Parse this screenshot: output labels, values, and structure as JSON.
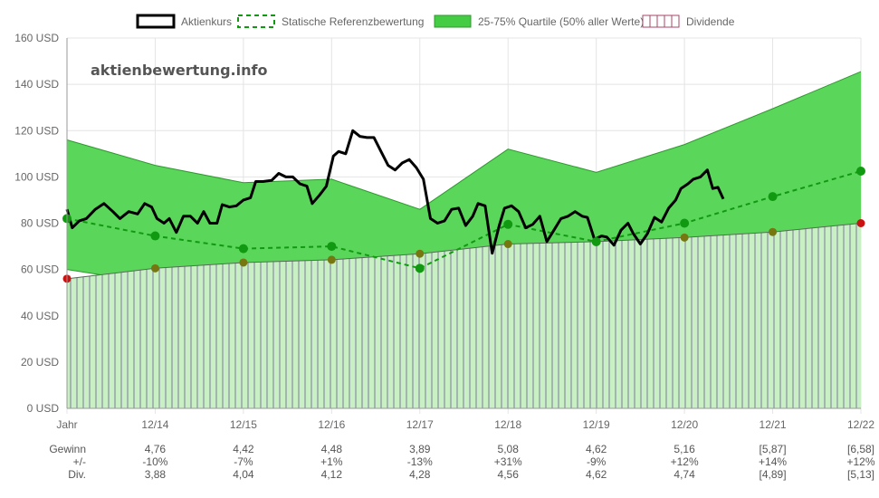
{
  "watermark": "aktienbewertung.info",
  "chart_data": {
    "type": "line",
    "legend": [
      {
        "label": "Aktienkurs",
        "color": "#000000",
        "style": "solid"
      },
      {
        "label": "Statische Referenzbewertung",
        "color": "#119911",
        "style": "dashed"
      },
      {
        "label": "25-75% Quartile (50% aller Werte)",
        "color": "#44cc44",
        "style": "fill"
      },
      {
        "label": "Dividende",
        "color": "#aa4466",
        "style": "hatch"
      }
    ],
    "legend_position": "top-center",
    "grid": true,
    "ylim": [
      0,
      160
    ],
    "y_ticks": [
      "0 USD",
      "20 USD",
      "40 USD",
      "60 USD",
      "80 USD",
      "100 USD",
      "120 USD",
      "140 USD",
      "160 USD"
    ],
    "x_labels": [
      "Jahr",
      "12/14",
      "12/15",
      "12/16",
      "12/17",
      "12/18",
      "12/19",
      "12/20",
      "12/21",
      "12/22"
    ],
    "quartile_upper": [
      [
        0,
        116
      ],
      [
        1,
        105
      ],
      [
        2,
        97.5
      ],
      [
        3,
        99
      ],
      [
        4,
        86
      ],
      [
        5,
        112
      ],
      [
        6,
        102
      ],
      [
        7,
        114
      ],
      [
        8,
        129.5
      ],
      [
        9,
        145.5
      ]
    ],
    "quartile_lower": [
      [
        0,
        60
      ],
      [
        1,
        54
      ],
      [
        2,
        50
      ],
      [
        3,
        50.5
      ],
      [
        4,
        44
      ],
      [
        5,
        58
      ],
      [
        6,
        52
      ],
      [
        7,
        58
      ],
      [
        8,
        66
      ],
      [
        9,
        74
      ]
    ],
    "dividend_line": [
      [
        0,
        56
      ],
      [
        1,
        60.5
      ],
      [
        2,
        63
      ],
      [
        3,
        64.2
      ],
      [
        4,
        66.8
      ],
      [
        5,
        71
      ],
      [
        6,
        72
      ],
      [
        7,
        73.8
      ],
      [
        8,
        76.2
      ],
      [
        9,
        80
      ]
    ],
    "dividend_points": [
      {
        "x": 0,
        "y": 56,
        "color": "#cc1111"
      },
      {
        "x": 1,
        "y": 60.5,
        "color": "#777711"
      },
      {
        "x": 2,
        "y": 63,
        "color": "#777711"
      },
      {
        "x": 3,
        "y": 64.2,
        "color": "#777711"
      },
      {
        "x": 4,
        "y": 66.8,
        "color": "#777711"
      },
      {
        "x": 5,
        "y": 71,
        "color": "#777711"
      },
      {
        "x": 6,
        "y": 72,
        "color": "#777711"
      },
      {
        "x": 7,
        "y": 73.8,
        "color": "#777711"
      },
      {
        "x": 8,
        "y": 76.2,
        "color": "#777711"
      },
      {
        "x": 9,
        "y": 80,
        "color": "#cc1111"
      }
    ],
    "reference_line": [
      [
        0,
        82
      ],
      [
        1,
        74.5
      ],
      [
        2,
        69
      ],
      [
        3,
        70
      ],
      [
        4,
        60.5
      ],
      [
        5,
        79.5
      ],
      [
        6,
        72
      ],
      [
        7,
        80
      ],
      [
        8,
        91.5
      ],
      [
        9,
        102.5
      ]
    ],
    "price": [
      [
        0,
        86
      ],
      [
        0.06,
        78
      ],
      [
        0.14,
        81
      ],
      [
        0.22,
        82
      ],
      [
        0.32,
        86
      ],
      [
        0.42,
        88.5
      ],
      [
        0.52,
        85
      ],
      [
        0.6,
        82
      ],
      [
        0.7,
        85
      ],
      [
        0.8,
        84
      ],
      [
        0.88,
        88.5
      ],
      [
        0.96,
        87
      ],
      [
        1.02,
        82
      ],
      [
        1.1,
        80
      ],
      [
        1.16,
        82
      ],
      [
        1.24,
        76
      ],
      [
        1.32,
        83
      ],
      [
        1.4,
        83
      ],
      [
        1.48,
        80
      ],
      [
        1.55,
        85
      ],
      [
        1.62,
        80
      ],
      [
        1.7,
        80
      ],
      [
        1.76,
        88
      ],
      [
        1.84,
        87
      ],
      [
        1.92,
        87.5
      ],
      [
        2.0,
        90
      ],
      [
        2.08,
        91
      ],
      [
        2.14,
        98
      ],
      [
        2.22,
        98
      ],
      [
        2.32,
        98.5
      ],
      [
        2.4,
        101.5
      ],
      [
        2.48,
        100
      ],
      [
        2.56,
        100
      ],
      [
        2.64,
        97
      ],
      [
        2.72,
        96
      ],
      [
        2.78,
        88.5
      ],
      [
        2.86,
        92
      ],
      [
        2.94,
        96
      ],
      [
        3.02,
        109
      ],
      [
        3.08,
        111
      ],
      [
        3.16,
        110
      ],
      [
        3.24,
        120
      ],
      [
        3.32,
        117.5
      ],
      [
        3.4,
        117
      ],
      [
        3.48,
        117
      ],
      [
        3.56,
        111
      ],
      [
        3.64,
        105
      ],
      [
        3.72,
        103
      ],
      [
        3.8,
        106
      ],
      [
        3.88,
        107.5
      ],
      [
        3.96,
        104
      ],
      [
        4.04,
        99
      ],
      [
        4.12,
        82
      ],
      [
        4.2,
        80
      ],
      [
        4.28,
        81
      ],
      [
        4.36,
        86
      ],
      [
        4.44,
        86.5
      ],
      [
        4.52,
        79
      ],
      [
        4.6,
        83
      ],
      [
        4.66,
        88.5
      ],
      [
        4.74,
        87.5
      ],
      [
        4.82,
        67
      ],
      [
        4.9,
        79
      ],
      [
        4.96,
        86.5
      ],
      [
        5.04,
        87.5
      ],
      [
        5.12,
        85
      ],
      [
        5.2,
        78
      ],
      [
        5.28,
        79.5
      ],
      [
        5.36,
        83
      ],
      [
        5.44,
        72
      ],
      [
        5.52,
        77
      ],
      [
        5.6,
        82
      ],
      [
        5.68,
        83
      ],
      [
        5.76,
        85
      ],
      [
        5.84,
        83
      ],
      [
        5.9,
        82.5
      ],
      [
        5.98,
        73
      ],
      [
        6.06,
        74.5
      ],
      [
        6.12,
        74
      ],
      [
        6.2,
        70.5
      ],
      [
        6.28,
        77
      ],
      [
        6.36,
        80
      ],
      [
        6.42,
        75.5
      ],
      [
        6.5,
        71
      ],
      [
        6.58,
        75.5
      ],
      [
        6.66,
        82.5
      ],
      [
        6.74,
        80.5
      ],
      [
        6.82,
        86.5
      ],
      [
        6.9,
        90
      ],
      [
        6.96,
        95
      ],
      [
        7.04,
        97
      ],
      [
        7.1,
        99
      ],
      [
        7.18,
        100
      ],
      [
        7.26,
        103
      ],
      [
        7.32,
        95
      ],
      [
        7.38,
        95.5
      ],
      [
        7.44,
        90.5
      ]
    ],
    "colors": {
      "quartile_fill": "#5ad75a",
      "quartile_line": "#2d9a2d",
      "dividend_fill": "#c9f0c4",
      "hatch": "#7a7a9a",
      "price": "#000000",
      "reference": "#119911",
      "reference_dot": "#119911",
      "grid": "#e4e4e4"
    }
  },
  "table": {
    "rows": [
      {
        "label": "Gewinn",
        "values": [
          "4,76",
          "4,42",
          "4,48",
          "3,89",
          "5,08",
          "4,62",
          "5,16",
          "[5,87]",
          "[6,58]"
        ]
      },
      {
        "label": "+/-",
        "values": [
          "-10%",
          "-7%",
          "+1%",
          "-13%",
          "+31%",
          "-9%",
          "+12%",
          "+14%",
          "+12%"
        ]
      },
      {
        "label": "Div.",
        "values": [
          "3,88",
          "4,04",
          "4,12",
          "4,28",
          "4,56",
          "4,62",
          "4,74",
          "[4,89]",
          "[5,13]"
        ]
      }
    ]
  }
}
